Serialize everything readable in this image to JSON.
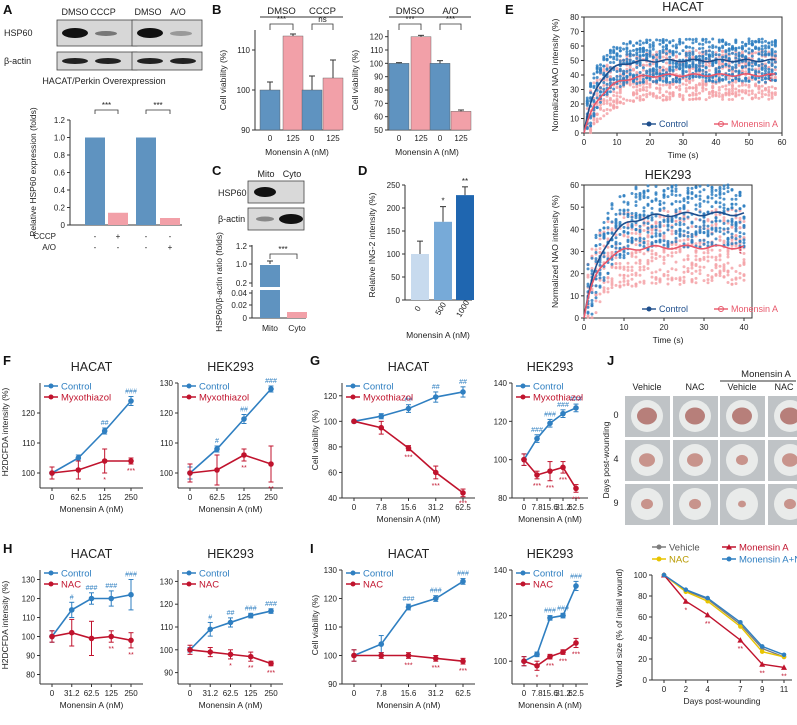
{
  "panel_labels": {
    "A": "A",
    "B": "B",
    "C": "C",
    "D": "D",
    "E": "E",
    "F": "F",
    "G": "G",
    "H": "H",
    "I": "I",
    "J": "J"
  },
  "colors": {
    "blue": "#2f7fc1",
    "red": "#c0132d",
    "lightred": "#f4a3a8",
    "blueBar": "#5f93c0",
    "pinkBar": "#f2a0a8",
    "dBar1": "#c7daee",
    "dBar2": "#77aad8",
    "dBar3": "#1f66b0",
    "grey": "#7d7d7d",
    "yellow": "#e8c400"
  },
  "chart_data": {
    "A_blot": {
      "type": "western_blot",
      "headers": [
        "DMSO",
        "CCCP",
        "DMSO",
        "A/O"
      ],
      "rows": [
        "HSP60",
        "β-actin"
      ],
      "caption": "HACAT/Perkin Overexpression"
    },
    "A_bar": {
      "type": "bar",
      "ylabel": "Relative HSP60 expression (folds)",
      "ylim": [
        0,
        1.2
      ],
      "yticks": [
        "0",
        "0.2",
        "0.4",
        "0.6",
        "0.8",
        "1.0",
        "1.2"
      ],
      "values": [
        1.0,
        0.14,
        1.0,
        0.08
      ],
      "row_labels": [
        "CCCP",
        "A/O"
      ],
      "signs": [
        [
          "-",
          "+",
          "-",
          "-"
        ],
        [
          "-",
          "-",
          "-",
          "+"
        ]
      ],
      "sig": [
        "***",
        "***"
      ]
    },
    "B1": {
      "type": "bar",
      "ylabel": "Cell viability (%)",
      "xlabel": "Monensin A (nM)",
      "ylim": [
        90,
        115
      ],
      "yticks": [
        "90",
        "100",
        "110"
      ],
      "groups": [
        "DMSO",
        "CCCP"
      ],
      "categories": [
        "0",
        "125",
        "0",
        "125"
      ],
      "values": [
        100,
        113.5,
        100,
        103
      ],
      "errors": [
        2,
        0.5,
        3.5,
        4.5
      ],
      "sig": [
        "***",
        "ns"
      ]
    },
    "B2": {
      "type": "bar",
      "ylabel": "Cell viability (%)",
      "ylim": [
        50,
        125
      ],
      "yticks": [
        "50",
        "60",
        "70",
        "80",
        "90",
        "100",
        "110",
        "120"
      ],
      "groups": [
        "DMSO",
        "A/O"
      ],
      "categories": [
        "0",
        "125",
        "0",
        "125"
      ],
      "values": [
        100,
        120,
        100,
        64
      ],
      "errors": [
        0.5,
        1,
        2,
        1
      ],
      "sig": [
        "***",
        "***"
      ]
    },
    "C_blot": {
      "type": "western_blot",
      "headers": [
        "Mito",
        "Cyto"
      ],
      "rows": [
        "HSP60",
        "β-actin"
      ]
    },
    "C_bar": {
      "type": "bar",
      "ylabel": "HSP60/β-actin ratio (folds)",
      "categories": [
        "Mito",
        "Cyto"
      ],
      "values": [
        1.0,
        0.009
      ],
      "yticks": [
        "0",
        "0.02",
        "0.04",
        "0.2",
        "1.0",
        "1.2"
      ],
      "sig": "***"
    },
    "D": {
      "type": "bar",
      "ylabel": "Relative ING-2 intensity (%)",
      "xlabel": "Monensin A (nM)",
      "ylim": [
        0,
        250
      ],
      "yticks": [
        "0",
        "50",
        "100",
        "150",
        "200",
        "250"
      ],
      "categories": [
        "0",
        "500",
        "1000"
      ],
      "values": [
        100,
        170,
        228
      ],
      "errors": [
        28,
        33,
        18
      ],
      "sig": [
        "",
        "*",
        "**"
      ]
    },
    "E1": {
      "type": "scatter",
      "title": "HACAT",
      "ylabel": "Normalized NAO intensity (%)",
      "xlabel": "Time (s)",
      "xlim": [
        0,
        60
      ],
      "ylim": [
        0,
        80
      ],
      "xticks": [
        "0",
        "10",
        "20",
        "30",
        "40",
        "50",
        "60"
      ],
      "yticks": [
        "0",
        "10",
        "20",
        "30",
        "40",
        "50",
        "60",
        "70",
        "80"
      ],
      "series": [
        {
          "name": "Control",
          "plateau": 50,
          "rate": 0.25
        },
        {
          "name": "Monensin A",
          "plateau": 40,
          "rate": 0.2
        }
      ],
      "sig": "***"
    },
    "E2": {
      "type": "scatter",
      "title": "HEK293",
      "ylabel": "Normalized NAO intensity (%)",
      "xlabel": "Time (s)",
      "xlim": [
        0,
        42
      ],
      "ylim": [
        0,
        60
      ],
      "xticks": [
        "0",
        "10",
        "20",
        "30",
        "40"
      ],
      "yticks": [
        "0",
        "10",
        "20",
        "30",
        "40",
        "50",
        "60"
      ],
      "series": [
        {
          "name": "Control",
          "plateau": 47,
          "rate": 0.22
        },
        {
          "name": "Monensin A",
          "plateau": 32,
          "rate": 0.3
        }
      ],
      "sig": "***"
    },
    "F1": {
      "type": "line",
      "title": "HACAT",
      "ylabel": "H2DCFDA intensity (%)",
      "xlabel": "Monensin A (nM)",
      "categories": [
        "0",
        "62.5",
        "125",
        "250"
      ],
      "ylim": [
        95,
        130
      ],
      "yticks": [
        "100",
        "110",
        "120"
      ],
      "series": [
        {
          "name": "Control",
          "values": [
            100,
            105,
            114,
            124
          ],
          "errors": [
            2,
            1,
            1,
            1.5
          ],
          "sig": [
            "",
            "",
            "##",
            "###"
          ]
        },
        {
          "name": "Myxothiazol",
          "values": [
            100,
            101,
            104,
            104
          ],
          "errors": [
            2,
            3,
            4,
            1
          ],
          "sig": [
            "",
            "",
            "*",
            "***"
          ]
        }
      ]
    },
    "F2": {
      "type": "line",
      "title": "HEK293",
      "ylabel": "",
      "xlabel": "Monensin A (nM)",
      "categories": [
        "0",
        "62.5",
        "125",
        "250"
      ],
      "ylim": [
        95,
        130
      ],
      "yticks": [
        "100",
        "110",
        "120",
        "130"
      ],
      "series": [
        {
          "name": "Control",
          "values": [
            100,
            108,
            118,
            128
          ],
          "errors": [
            2,
            1,
            1.5,
            1
          ],
          "sig": [
            "",
            "#",
            "##",
            "###"
          ]
        },
        {
          "name": "Myxothiazol",
          "values": [
            100,
            101,
            106,
            103
          ],
          "errors": [
            3,
            5,
            2,
            6
          ],
          "sig": [
            "",
            "",
            "**",
            "**"
          ]
        }
      ]
    },
    "G1": {
      "type": "line",
      "title": "HACAT",
      "ylabel": "Cell viability (%)",
      "xlabel": "Monensin A (nM)",
      "categories": [
        "0",
        "7.8",
        "15.6",
        "31.2",
        "62.5"
      ],
      "ylim": [
        40,
        130
      ],
      "yticks": [
        "40",
        "60",
        "80",
        "100",
        "120"
      ],
      "series": [
        {
          "name": "Control",
          "values": [
            100,
            104,
            110,
            119,
            123
          ],
          "errors": [
            1,
            2,
            3,
            4,
            4
          ],
          "sig": [
            "",
            "",
            "##",
            "##",
            "##"
          ]
        },
        {
          "name": "Myxothiazol",
          "values": [
            100,
            95,
            79,
            60,
            44
          ],
          "errors": [
            1,
            5,
            2,
            5,
            3
          ],
          "sig": [
            "",
            "",
            "***",
            "***",
            "***"
          ]
        }
      ]
    },
    "G2": {
      "type": "line",
      "title": "HEK293",
      "ylabel": "",
      "xlabel": "Monensin A (nM)",
      "categories": [
        "0",
        "7.8",
        "15.6",
        "31.2",
        "62.5"
      ],
      "ylim": [
        80,
        140
      ],
      "yticks": [
        "80",
        "100",
        "120",
        "140"
      ],
      "series": [
        {
          "name": "Control",
          "values": [
            100,
            111,
            119,
            124,
            127
          ],
          "errors": [
            3,
            2,
            2,
            2,
            2
          ],
          "sig": [
            "",
            "###",
            "###",
            "###",
            "###"
          ]
        },
        {
          "name": "Myxothiazol",
          "values": [
            100,
            92,
            94,
            96,
            85
          ],
          "errors": [
            3,
            2,
            5,
            3,
            2
          ],
          "sig": [
            "",
            "***",
            "***",
            "***",
            "***"
          ]
        }
      ]
    },
    "H1": {
      "type": "line",
      "title": "HACAT",
      "ylabel": "H2DCFDA intensity (%)",
      "xlabel": "Monensin A (nM)",
      "categories": [
        "0",
        "31.2",
        "62.5",
        "125",
        "250"
      ],
      "ylim": [
        75,
        135
      ],
      "yticks": [
        "80",
        "90",
        "100",
        "110",
        "120",
        "130"
      ],
      "series": [
        {
          "name": "Control",
          "values": [
            100,
            114,
            120,
            120,
            122
          ],
          "errors": [
            3,
            4,
            3,
            4,
            8
          ],
          "sig": [
            "",
            "#",
            "###",
            "###",
            "###"
          ]
        },
        {
          "name": "NAC",
          "values": [
            100,
            102,
            99,
            100,
            98
          ],
          "errors": [
            3,
            7,
            9,
            3,
            4
          ],
          "sig": [
            "",
            "",
            "",
            "**",
            "**"
          ]
        }
      ]
    },
    "H2": {
      "type": "line",
      "title": "HEK293",
      "ylabel": "",
      "xlabel": "Monensin A (nM)",
      "categories": [
        "0",
        "31.2",
        "62.5",
        "125",
        "250"
      ],
      "ylim": [
        85,
        135
      ],
      "yticks": [
        "90",
        "100",
        "110",
        "120",
        "130"
      ],
      "series": [
        {
          "name": "Control",
          "values": [
            100,
            109,
            112,
            115,
            117
          ],
          "errors": [
            1,
            3,
            2,
            1,
            1
          ],
          "sig": [
            "",
            "#",
            "##",
            "###",
            "###"
          ]
        },
        {
          "name": "NAC",
          "values": [
            100,
            99,
            98,
            97,
            94
          ],
          "errors": [
            2,
            2,
            2,
            2,
            1
          ],
          "sig": [
            "",
            "",
            "*",
            "**",
            "***"
          ]
        }
      ]
    },
    "I1": {
      "type": "line",
      "title": "HACAT",
      "ylabel": "Cell viability (%)",
      "xlabel": "Monensin A (nM)",
      "categories": [
        "0",
        "7.8",
        "15.6",
        "31.2",
        "62.5"
      ],
      "ylim": [
        90,
        130
      ],
      "yticks": [
        "90",
        "100",
        "110",
        "120",
        "130"
      ],
      "series": [
        {
          "name": "Control",
          "values": [
            100,
            104,
            117,
            120,
            126
          ],
          "errors": [
            2,
            3,
            1,
            1,
            1
          ],
          "sig": [
            "",
            "",
            "###",
            "###",
            "###"
          ]
        },
        {
          "name": "NAC",
          "values": [
            100,
            100,
            100,
            99,
            98
          ],
          "errors": [
            2,
            1,
            1,
            1,
            1
          ],
          "sig": [
            "",
            "",
            "***",
            "***",
            "***"
          ]
        }
      ]
    },
    "I2": {
      "type": "line",
      "title": "HEK293",
      "ylabel": "",
      "xlabel": "Monensin A (nM)",
      "categories": [
        "0",
        "7.8",
        "15.6",
        "31.2",
        "62.5"
      ],
      "ylim": [
        90,
        140
      ],
      "yticks": [
        "100",
        "120",
        "140"
      ],
      "series": [
        {
          "name": "Control",
          "values": [
            100,
            103,
            119,
            120,
            133
          ],
          "errors": [
            2,
            1,
            1,
            1,
            2
          ],
          "sig": [
            "",
            "",
            "###",
            "###",
            "###"
          ]
        },
        {
          "name": "NAC",
          "values": [
            100,
            98,
            102,
            104,
            108
          ],
          "errors": [
            2,
            2,
            1,
            1,
            2
          ],
          "sig": [
            "",
            "*",
            "***",
            "***",
            "***"
          ]
        }
      ]
    },
    "J_images": {
      "type": "image_grid",
      "group_header": "Monensin A",
      "columns": [
        "Vehicle",
        "NAC",
        "Vehicle",
        "NAC"
      ],
      "rows": [
        "0",
        "4",
        "9"
      ],
      "ylabel": "Days post-wounding"
    },
    "J_line": {
      "type": "line",
      "ylabel": "Wound size (% of initial wound)",
      "xlabel": "Days post-wounding",
      "x": [
        "0",
        "2",
        "4",
        "7",
        "9",
        "11"
      ],
      "ylim": [
        0,
        100
      ],
      "yticks": [
        "0",
        "20",
        "40",
        "60",
        "80",
        "100"
      ],
      "series": [
        {
          "name": "Vehicle",
          "values": [
            100,
            85,
            77,
            53,
            30,
            22
          ],
          "sig": []
        },
        {
          "name": "NAC",
          "values": [
            100,
            84,
            75,
            51,
            27,
            22
          ],
          "sig": []
        },
        {
          "name": "Monensin A",
          "values": [
            100,
            75,
            62,
            38,
            15,
            12
          ],
          "sig": [
            "",
            "*",
            "**",
            "**",
            "**",
            "**"
          ]
        },
        {
          "name": "Monensin A+NAC",
          "values": [
            100,
            86,
            78,
            55,
            32,
            24
          ],
          "sig": []
        }
      ]
    }
  }
}
